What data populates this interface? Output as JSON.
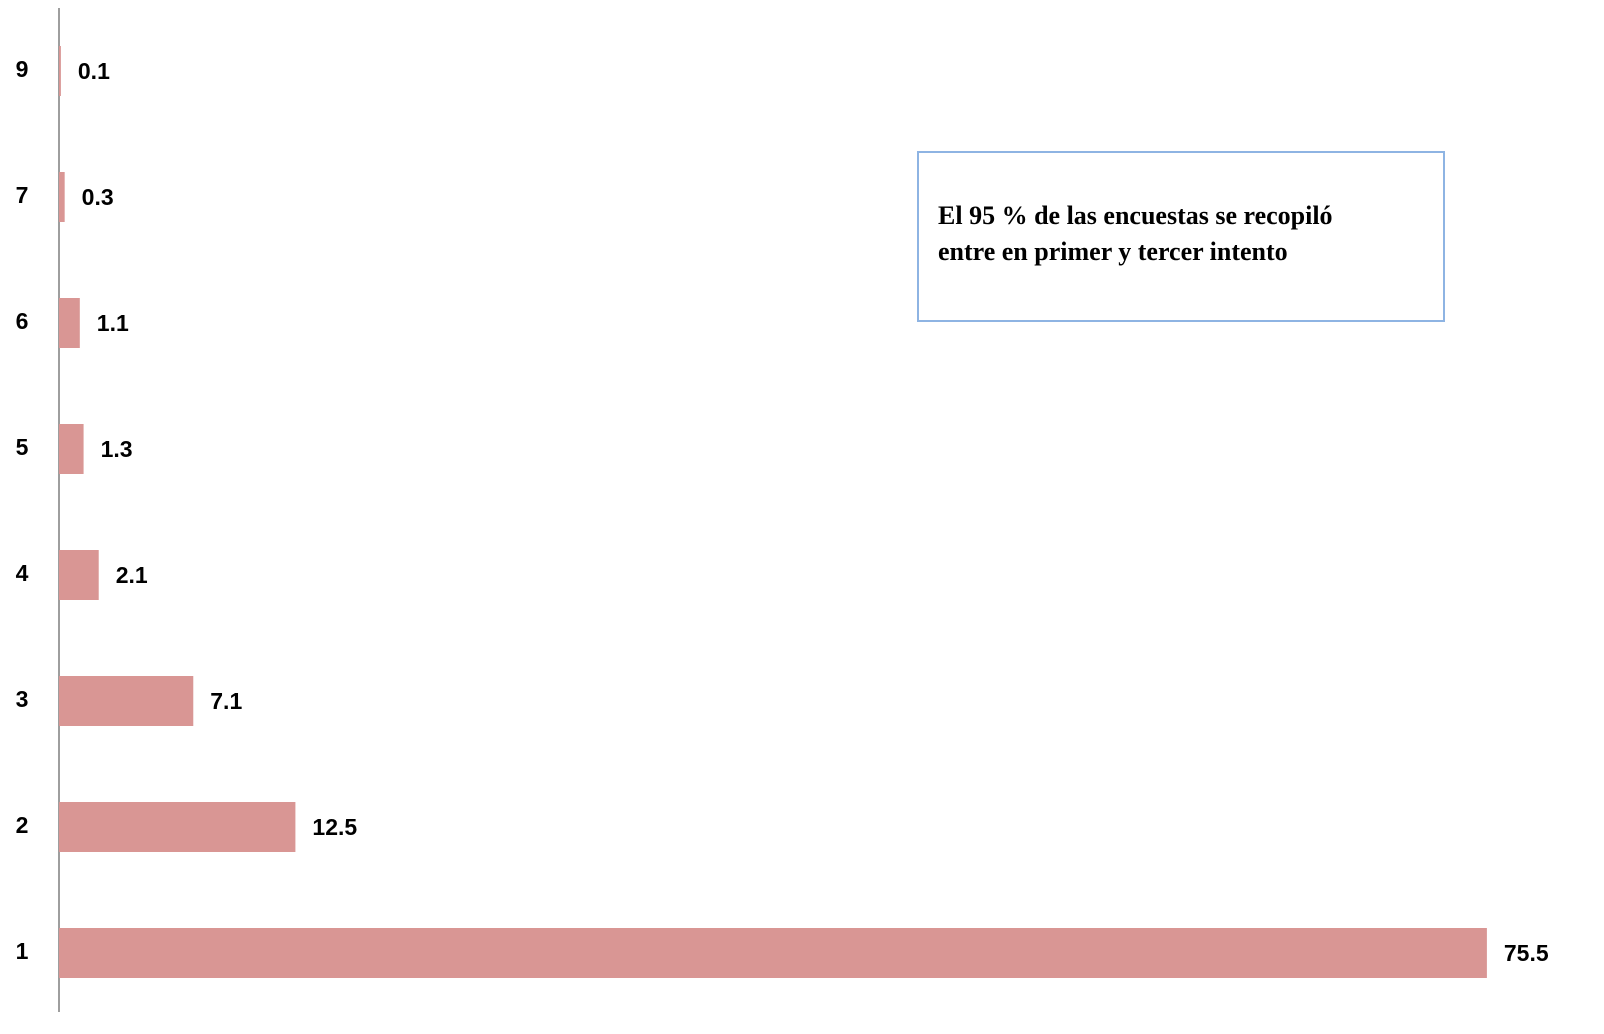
{
  "chart_data": {
    "type": "hbar",
    "categories": [
      "1",
      "2",
      "3",
      "4",
      "5",
      "6",
      "7",
      "9"
    ],
    "values": [
      75.5,
      12.5,
      7.1,
      2.1,
      1.3,
      1.1,
      0.3,
      0.1
    ],
    "color": "#d99694",
    "xlim": [
      0,
      80
    ],
    "annotation": [
      "El 95 % de las encuestas se recopiló",
      "entre en primer y tercer  intento"
    ],
    "annotation_color": "#e46c0a"
  }
}
